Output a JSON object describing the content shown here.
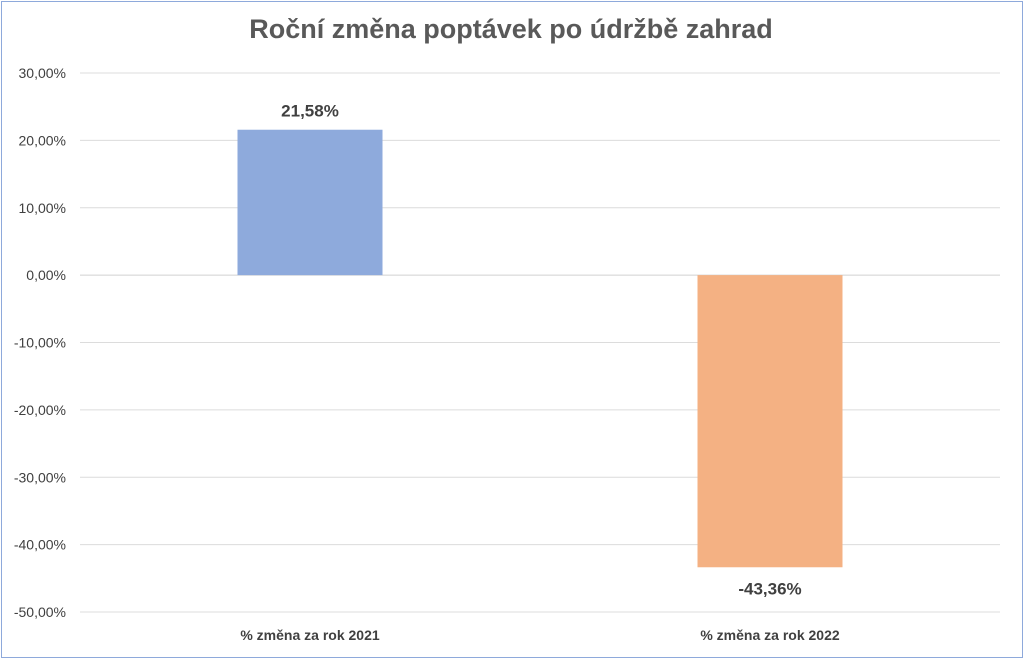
{
  "chart_data": {
    "type": "bar",
    "title": "Roční změna poptávek po údržbě zahrad",
    "categories": [
      "% změna za rok 2021",
      "% změna za rok 2022"
    ],
    "values": [
      21.58,
      -43.36
    ],
    "data_labels": [
      "21,58%",
      "-43,36%"
    ],
    "colors": [
      "#8eaadc",
      "#f4b183"
    ],
    "ylim": [
      -50,
      30
    ],
    "yticks": [
      30,
      20,
      10,
      0,
      -10,
      -20,
      -30,
      -40,
      -50
    ],
    "ytick_labels": [
      "30,00%",
      "20,00%",
      "10,00%",
      "0,00%",
      "-10,00%",
      "-20,00%",
      "-30,00%",
      "-40,00%",
      "-50,00%"
    ],
    "grid": true,
    "xlabel": "",
    "ylabel": ""
  }
}
